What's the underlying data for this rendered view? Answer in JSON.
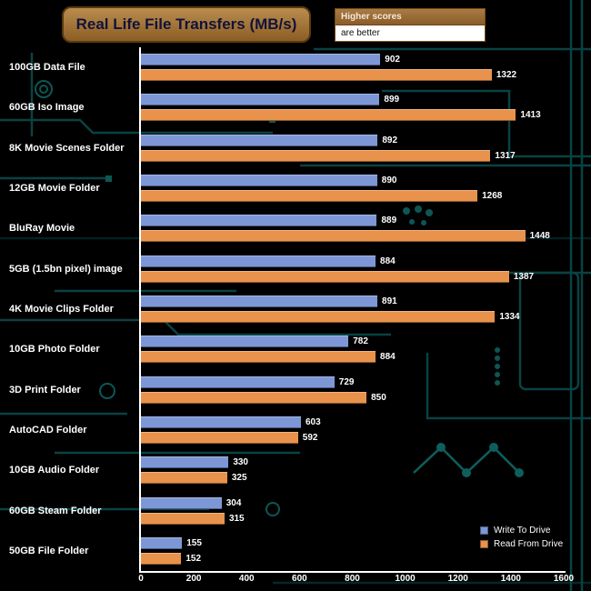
{
  "title": "Real Life File Transfers (MB/s)",
  "note": {
    "line1": "Higher scores",
    "line2": "are better"
  },
  "legend": {
    "write_label": "Write To Drive",
    "read_label": "Read From Drive"
  },
  "colors": {
    "write_bar": "#7d97d6",
    "read_bar": "#e8924c",
    "title_bg": "#a9793c",
    "background": "#000000",
    "circuit_trace": "#0d5050",
    "axis": "#ffffff"
  },
  "chart_data": {
    "type": "bar",
    "orientation": "horizontal",
    "title": "Real Life File Transfers (MB/s)",
    "xlabel": "",
    "ylabel": "",
    "xlim": [
      0,
      1600
    ],
    "xticks": [
      0,
      200,
      400,
      600,
      800,
      1000,
      1200,
      1400,
      1600
    ],
    "grid": false,
    "legend_position": "bottom-right",
    "categories": [
      "100GB Data File",
      "60GB Iso Image",
      "8K Movie Scenes Folder",
      "12GB Movie Folder",
      "BluRay Movie",
      "5GB (1.5bn pixel) image",
      "4K Movie Clips Folder",
      "10GB Photo Folder",
      "3D Print Folder",
      "AutoCAD Folder",
      "10GB Audio Folder",
      "60GB Steam Folder",
      "50GB File Folder"
    ],
    "series": [
      {
        "name": "Write To Drive",
        "color": "#7d97d6",
        "values": [
          902,
          899,
          892,
          890,
          889,
          884,
          891,
          782,
          729,
          603,
          330,
          304,
          155
        ]
      },
      {
        "name": "Read From Drive",
        "color": "#e8924c",
        "values": [
          1322,
          1413,
          1317,
          1268,
          1448,
          1387,
          1334,
          884,
          850,
          592,
          325,
          315,
          152
        ]
      }
    ]
  }
}
